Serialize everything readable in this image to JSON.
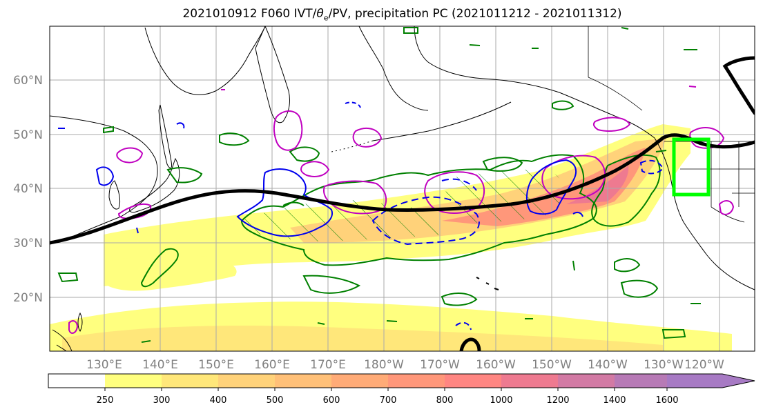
{
  "title": {
    "prefix": "2021010912 F060 IVT/",
    "theta": "θ",
    "theta_sub": "e",
    "suffix": "/PV, precipitation PC (2021011212 - 2021011312)"
  },
  "map": {
    "lat_labels": [
      "60°N",
      "50°N",
      "40°N",
      "30°N",
      "20°N"
    ],
    "lon_labels": [
      "130°E",
      "140°E",
      "150°E",
      "160°E",
      "170°E",
      "180°W",
      "170°W",
      "160°W",
      "150°W",
      "140°W",
      "130°W",
      "120°W"
    ],
    "colors": {
      "land_outline": "#000000",
      "jet_line": "#000000",
      "green_contour": "#008000",
      "magenta_contour": "#c000c0",
      "blue_contour": "#0000ee",
      "target_box": "#00ff00",
      "grid": "#aaaaaa",
      "tick_label": "#808080"
    }
  },
  "colorbar": {
    "ticks": [
      "250",
      "300",
      "400",
      "500",
      "600",
      "700",
      "800",
      "1000",
      "1200",
      "1400",
      "1600"
    ],
    "colors": [
      "#ffffff",
      "#ffff7f",
      "#ffe77a",
      "#ffd27a",
      "#ffc078",
      "#ffab77",
      "#ff977a",
      "#ff8682",
      "#ee7a90",
      "#d27aa4",
      "#a77ac4"
    ],
    "extend": "max"
  }
}
